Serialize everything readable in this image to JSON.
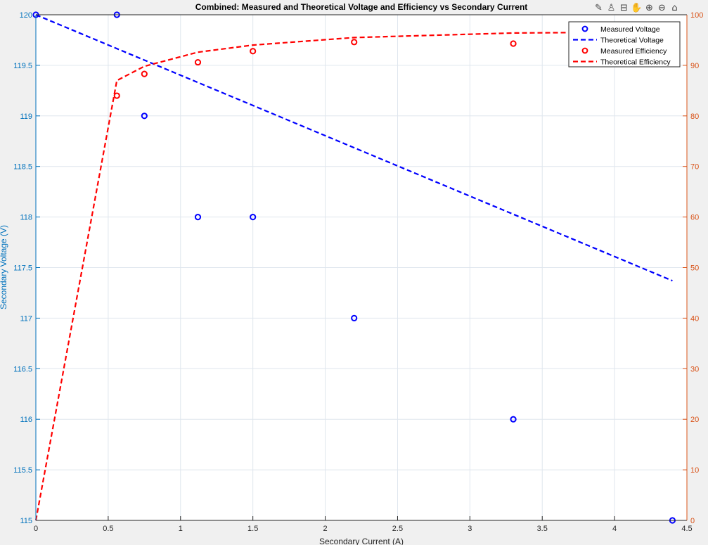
{
  "toolbar": {
    "icons": [
      "brush-icon",
      "data-tips-icon",
      "export-icon",
      "pan-icon",
      "zoom-in-icon",
      "zoom-out-icon",
      "home-icon"
    ],
    "glyphs": [
      "✎",
      "♙",
      "⊟",
      "✋",
      "⊕",
      "⊖",
      "⌂"
    ]
  },
  "chart_data": {
    "type": "line",
    "title": "Combined: Measured and Theoretical Voltage and Efficiency vs Secondary Current",
    "xlabel": "Secondary Current (A)",
    "ylabel": "Secondary Voltage (V)",
    "y2label": "",
    "xlim": [
      0,
      4.5
    ],
    "ylim": [
      115,
      120
    ],
    "y2lim": [
      0,
      100
    ],
    "xticks": [
      0,
      0.5,
      1,
      1.5,
      2,
      2.5,
      3,
      3.5,
      4,
      4.5
    ],
    "xtick_labels": [
      "0",
      "0.5",
      "1",
      "1.5",
      "2",
      "2.5",
      "3",
      "3.5",
      "4",
      "4.5"
    ],
    "yticks": [
      115,
      115.5,
      116,
      116.5,
      117,
      117.5,
      118,
      118.5,
      119,
      119.5,
      120
    ],
    "ytick_labels": [
      "115",
      "115.5",
      "116",
      "116.5",
      "117",
      "117.5",
      "118",
      "118.5",
      "119",
      "119.5",
      "120"
    ],
    "y2ticks": [
      0,
      10,
      20,
      30,
      40,
      50,
      60,
      70,
      80,
      90,
      100
    ],
    "y2tick_labels": [
      "0",
      "10",
      "20",
      "30",
      "40",
      "50",
      "60",
      "70",
      "80",
      "90",
      "100"
    ],
    "grid": true,
    "legend_position": "top-right",
    "colors": {
      "voltage": "#0000ff",
      "efficiency": "#ff0000",
      "left_axis": "#0072bd",
      "right_axis": "#d95319"
    },
    "series": [
      {
        "name": "Measured Voltage",
        "axis": "left",
        "style": "marker",
        "color": "#0000ff",
        "x": [
          0,
          0.56,
          0.75,
          1.12,
          1.5,
          2.2,
          3.3,
          4.4
        ],
        "y": [
          120,
          120,
          119,
          118,
          118,
          117,
          116,
          115
        ]
      },
      {
        "name": "Theoretical Voltage",
        "axis": "left",
        "style": "dashed",
        "color": "#0000ff",
        "x": [
          0,
          4.4
        ],
        "y": [
          120,
          117.37
        ]
      },
      {
        "name": "Measured Efficiency",
        "axis": "right",
        "style": "marker",
        "color": "#ff0000",
        "x": [
          0.56,
          0.75,
          1.12,
          1.5,
          2.2,
          3.3
        ],
        "y": [
          84,
          88.3,
          90.6,
          92.8,
          94.6,
          94.3
        ]
      },
      {
        "name": "Theoretical Efficiency",
        "axis": "right",
        "style": "dashed",
        "color": "#ff0000",
        "x": [
          0,
          0.56,
          0.75,
          1.12,
          1.5,
          2.2,
          3.3,
          4.4
        ],
        "y": [
          0,
          87,
          89.8,
          92.6,
          94,
          95.5,
          96.4,
          96.6
        ]
      }
    ]
  }
}
